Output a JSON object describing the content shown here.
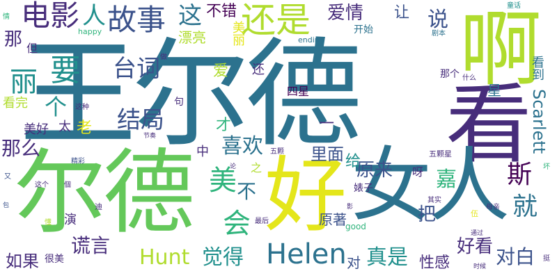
{
  "palette": {
    "yellow": "#e4e61a",
    "yellow_green": "#b0dc2e",
    "light_green": "#64c85a",
    "green": "#2fb47c",
    "teal": "#21908d",
    "blue_teal": "#2c728e",
    "blue": "#3b528b",
    "indigo": "#472d7b",
    "purple": "#440154"
  },
  "words": {
    "wangerde": "王尔德",
    "erde": "尔德",
    "a": "啊",
    "kan": "看",
    "hao": "好",
    "nvren": "女人",
    "dianying": "电影",
    "ren": "人",
    "gushi": "故事",
    "zhe": "这",
    "buchuo": "不错",
    "haishi": "还是",
    "aiqing": "爱情",
    "rang": "让",
    "shuo": "说",
    "na": "那",
    "li": "丽",
    "yao": "要",
    "taici": "台词",
    "jieju": "结局",
    "ge": "个",
    "name": "那么",
    "xihuan": "喜欢",
    "mei": "美",
    "jia": "嘉",
    "si": "斯",
    "jiu": "就",
    "scarlett": "Scarlett",
    "kandao": "看到",
    "helen": "Helen",
    "hunt": "Hunt",
    "huangyan": "谎言",
    "juede": "觉得",
    "hui": "会",
    "ruguo": "如果",
    "duibai": "对白",
    "zhenshi": "真是",
    "haokan": "好看",
    "ba": "把",
    "yuanlai": "原来",
    "limian": "里面",
    "piaoliang": "漂亮",
    "kaishi": "开始",
    "happy": "happy",
    "ending": "ending",
    "xinggan": "性感",
    "kanwan": "看完",
    "meihao": "美好",
    "tai": "太",
    "lao": "老",
    "cai": "才",
    "zhong": "中",
    "gei": "给",
    "wu": "五颗",
    "wukexing": "五颗星",
    "sixing": "四星",
    "yuanzhu": "原著",
    "duide": "对",
    "henmei": "很美",
    "yan": "演",
    "good": "good",
    "zuihou": "最后",
    "qishi": "其实",
    "muqin": "母亲",
    "shihou": "时候",
    "tonghua": "童话",
    "juben": "剧本",
    "shenme": "什么",
    "nage": "那个",
    "xing": "星",
    "ya": "呀",
    "biaozi": "婊子",
    "zhizhong": "这种",
    "jingcai": "精彩",
    "dan": "但",
    "ai": "爱",
    "haier": "还",
    "ju": "句",
    "zhi": "之",
    "bu": "不",
    "yi": "一",
    "zuo": "做",
    "jiejie": "节奏",
    "zhege": "这个",
    "you": "又",
    "qing": "情",
    "ting": "挺",
    "tongguo": "通过",
    "huai": "坏",
    "quan": "全",
    "chui": "吹",
    "xiao": "笑",
    "lun": "论",
    "ying": "影",
    "di": "迪",
    "dong": "懂",
    "wu2": "伍",
    "bao": "包",
    "ge2": "個",
    "meili": "美丽"
  }
}
